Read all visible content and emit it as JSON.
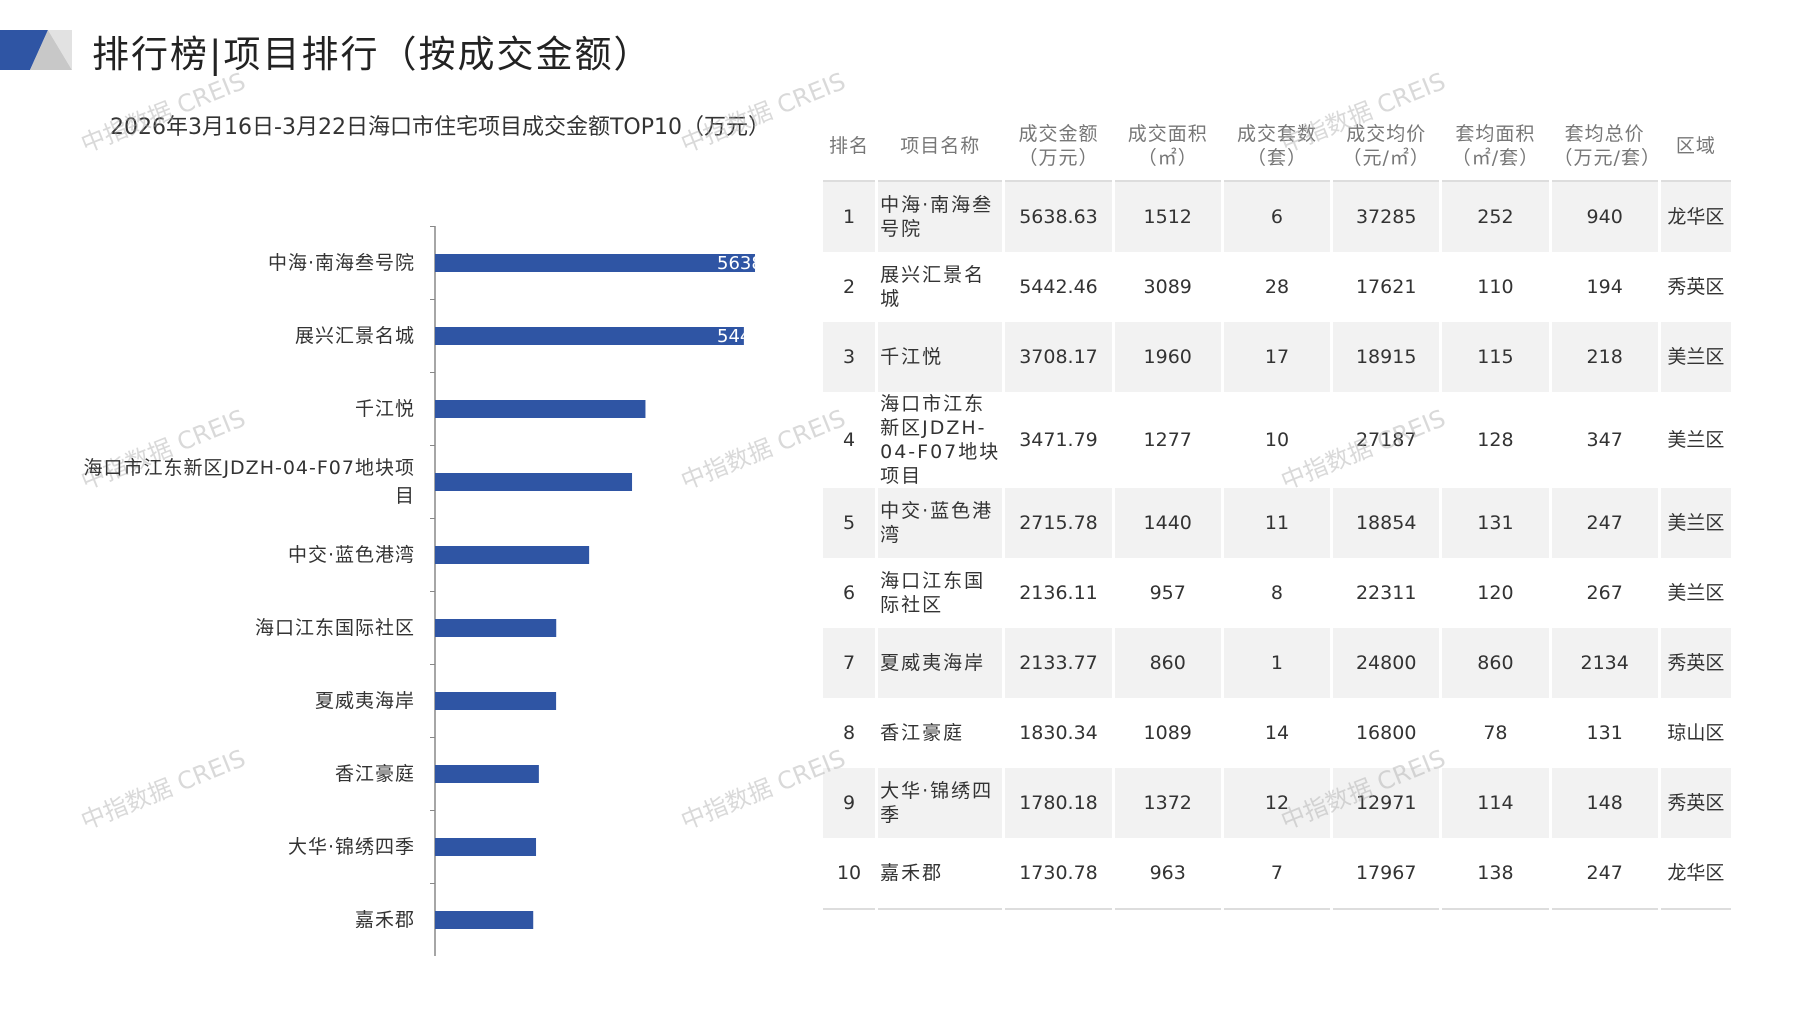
{
  "header": {
    "title": "排行榜|项目排行（按成交金额）"
  },
  "watermark": "中指数据 CREIS",
  "chart_data": {
    "type": "hbar",
    "title": "2026年3月16日-3月22日海口市住宅项目成交金额TOP10（万元）",
    "categories": [
      "中海·南海叁号院",
      "展兴汇景名城",
      "千江悦",
      "海口市江东新区JDZH-04-F07地块项目",
      "中交·蓝色港湾",
      "海口江东国际社区",
      "夏威夷海岸",
      "香江豪庭",
      "大华·锦绣四季",
      "嘉禾郡"
    ],
    "values": [
      5638.63,
      5442.46,
      3708.17,
      3471.79,
      2715.78,
      2136.11,
      2133.77,
      1830.34,
      1780.18,
      1730.78
    ],
    "color": "#2f55a4",
    "xlim": [
      0,
      5700
    ]
  },
  "table": {
    "columns": [
      "排名",
      "项目名称",
      "成交金额（万元）",
      "成交面积（㎡）",
      "成交套数（套）",
      "成交均价（元/㎡）",
      "套均面积（㎡/套）",
      "套均总价（万元/套）",
      "区域"
    ],
    "rows": [
      [
        1,
        "中海·南海叁号院",
        5638.63,
        1512,
        6,
        37285,
        252,
        940,
        "龙华区"
      ],
      [
        2,
        "展兴汇景名城",
        5442.46,
        3089,
        28,
        17621,
        110,
        194,
        "秀英区"
      ],
      [
        3,
        "千江悦",
        3708.17,
        1960,
        17,
        18915,
        115,
        218,
        "美兰区"
      ],
      [
        4,
        "海口市江东新区JDZH-04-F07地块项目",
        3471.79,
        1277,
        10,
        27187,
        128,
        347,
        "美兰区"
      ],
      [
        5,
        "中交·蓝色港湾",
        2715.78,
        1440,
        11,
        18854,
        131,
        247,
        "美兰区"
      ],
      [
        6,
        "海口江东国际社区",
        2136.11,
        957,
        8,
        22311,
        120,
        267,
        "美兰区"
      ],
      [
        7,
        "夏威夷海岸",
        2133.77,
        860,
        1,
        24800,
        860,
        2134,
        "秀英区"
      ],
      [
        8,
        "香江豪庭",
        1830.34,
        1089,
        14,
        16800,
        78,
        131,
        "琼山区"
      ],
      [
        9,
        "大华·锦绣四季",
        1780.18,
        1372,
        12,
        12971,
        114,
        148,
        "秀英区"
      ],
      [
        10,
        "嘉禾郡",
        1730.78,
        963,
        7,
        17967,
        138,
        247,
        "龙华区"
      ]
    ]
  }
}
